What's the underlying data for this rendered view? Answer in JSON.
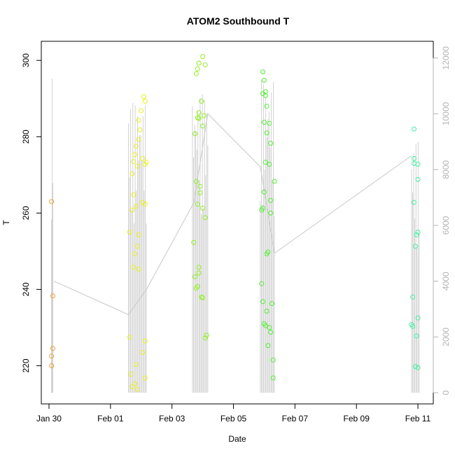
{
  "chart_data": {
    "type": "scatter",
    "title": "ATOM2 Southbound T",
    "xlabel": "Date",
    "ylabel": "T",
    "x_axis": {
      "type": "date",
      "range": [
        "2023-01-29T18:00",
        "2023-02-11T12:00"
      ],
      "ticks": [
        {
          "date": "2023-01-30",
          "label": "Jan 30"
        },
        {
          "date": "2023-02-01",
          "label": "Feb 01"
        },
        {
          "date": "2023-02-03",
          "label": "Feb 03"
        },
        {
          "date": "2023-02-05",
          "label": "Feb 05"
        },
        {
          "date": "2023-02-07",
          "label": "Feb 07"
        },
        {
          "date": "2023-02-09",
          "label": "Feb 09"
        },
        {
          "date": "2023-02-11",
          "label": "Feb 11"
        }
      ]
    },
    "y_left": {
      "range": [
        210,
        305
      ],
      "ticks": [
        220,
        240,
        260,
        280,
        300
      ]
    },
    "y_right": {
      "range": [
        -400,
        12600
      ],
      "ticks": [
        0,
        2000,
        4000,
        6000,
        8000,
        10000,
        12000
      ],
      "color": "#b3b3b3"
    },
    "grid": false,
    "point_style": "open circle",
    "line_color": "#c8c8c8",
    "series": [
      {
        "color": "#f0a030",
        "points": [
          {
            "x": "2023-01-30T02:00",
            "y": 263
          },
          {
            "x": "2023-01-30T03:00",
            "y": 238.3
          },
          {
            "x": "2023-01-30T03:00",
            "y": 224.5
          },
          {
            "x": "2023-01-30T02:00",
            "y": 222.5
          },
          {
            "x": "2023-01-30T02:00",
            "y": 220
          }
        ]
      },
      {
        "color": "#e8f020",
        "points": [
          {
            "x": "2023-02-02T02:00",
            "y": 290.5
          },
          {
            "x": "2023-02-02T03:00",
            "y": 289.3
          },
          {
            "x": "2023-02-02T00:00",
            "y": 286.8
          },
          {
            "x": "2023-02-01T22:00",
            "y": 284.3
          },
          {
            "x": "2023-02-01T23:00",
            "y": 281.8
          },
          {
            "x": "2023-02-01T20:00",
            "y": 277.5
          },
          {
            "x": "2023-02-01T22:00",
            "y": 279.3
          },
          {
            "x": "2023-02-01T19:00",
            "y": 275.3
          },
          {
            "x": "2023-02-01T18:00",
            "y": 273.5
          },
          {
            "x": "2023-02-02T01:00",
            "y": 274.3
          },
          {
            "x": "2023-02-02T03:00",
            "y": 272.8
          },
          {
            "x": "2023-02-02T04:00",
            "y": 273.3
          },
          {
            "x": "2023-02-01T21:00",
            "y": 272.3
          },
          {
            "x": "2023-02-01T17:00",
            "y": 270.3
          },
          {
            "x": "2023-02-01T18:00",
            "y": 264.8
          },
          {
            "x": "2023-02-02T01:00",
            "y": 262.8
          },
          {
            "x": "2023-02-02T03:00",
            "y": 262.3
          },
          {
            "x": "2023-02-01T20:00",
            "y": 261.8
          },
          {
            "x": "2023-02-01T17:00",
            "y": 260.8
          },
          {
            "x": "2023-02-01T15:00",
            "y": 255.0
          },
          {
            "x": "2023-02-01T22:00",
            "y": 254.3
          },
          {
            "x": "2023-02-01T21:00",
            "y": 251.3
          },
          {
            "x": "2023-02-01T19:00",
            "y": 249.3
          },
          {
            "x": "2023-02-01T18:00",
            "y": 245.8
          },
          {
            "x": "2023-02-01T22:00",
            "y": 245.3
          },
          {
            "x": "2023-02-01T15:00",
            "y": 227.5
          },
          {
            "x": "2023-02-02T03:00",
            "y": 226.5
          },
          {
            "x": "2023-02-02T01:00",
            "y": 223.5
          },
          {
            "x": "2023-02-01T20:00",
            "y": 220.3
          },
          {
            "x": "2023-02-01T16:00",
            "y": 217.8
          },
          {
            "x": "2023-02-02T03:00",
            "y": 216.8
          },
          {
            "x": "2023-02-01T19:00",
            "y": 215.3
          },
          {
            "x": "2023-02-01T17:00",
            "y": 214.5
          },
          {
            "x": "2023-02-01T21:00",
            "y": 213.8
          }
        ]
      },
      {
        "color": "#90f020",
        "points": [
          {
            "x": "2023-02-04T00:00",
            "y": 301
          },
          {
            "x": "2023-02-03T21:00",
            "y": 299.3
          },
          {
            "x": "2023-02-04T02:00",
            "y": 298.8
          },
          {
            "x": "2023-02-03T20:00",
            "y": 297.8
          },
          {
            "x": "2023-02-03T19:00",
            "y": 296.5
          },
          {
            "x": "2023-02-03T23:00",
            "y": 289.3
          },
          {
            "x": "2023-02-03T21:00",
            "y": 286.3
          },
          {
            "x": "2023-02-04T01:00",
            "y": 285.5
          },
          {
            "x": "2023-02-03T20:00",
            "y": 285.0
          },
          {
            "x": "2023-02-03T21:00",
            "y": 284.8
          },
          {
            "x": "2023-02-04T00:00",
            "y": 282.8
          },
          {
            "x": "2023-02-03T18:00",
            "y": 280.8
          },
          {
            "x": "2023-02-03T19:00",
            "y": 268.3
          },
          {
            "x": "2023-02-03T22:00",
            "y": 267.0
          },
          {
            "x": "2023-02-03T22:00",
            "y": 265.3
          },
          {
            "x": "2023-02-03T20:00",
            "y": 262.3
          },
          {
            "x": "2023-02-04T00:00",
            "y": 261.3
          },
          {
            "x": "2023-02-04T02:00",
            "y": 258.8
          },
          {
            "x": "2023-02-03T17:00",
            "y": 252.3
          },
          {
            "x": "2023-02-03T21:00",
            "y": 245.8
          },
          {
            "x": "2023-02-03T21:00",
            "y": 244.3
          },
          {
            "x": "2023-02-03T18:00",
            "y": 243.3
          },
          {
            "x": "2023-02-03T20:00",
            "y": 240.8
          },
          {
            "x": "2023-02-03T19:00",
            "y": 240.3
          },
          {
            "x": "2023-02-03T23:00",
            "y": 238.0
          },
          {
            "x": "2023-02-04T00:00",
            "y": 237.8
          },
          {
            "x": "2023-02-04T03:00",
            "y": 228.0
          },
          {
            "x": "2023-02-04T02:00",
            "y": 227.3
          }
        ]
      },
      {
        "color": "#50f030",
        "points": [
          {
            "x": "2023-02-05T23:00",
            "y": 297
          },
          {
            "x": "2023-02-06T00:00",
            "y": 294.8
          },
          {
            "x": "2023-02-06T01:00",
            "y": 291.8
          },
          {
            "x": "2023-02-05T23:00",
            "y": 291.3
          },
          {
            "x": "2023-02-06T01:00",
            "y": 290.8
          },
          {
            "x": "2023-02-06T02:00",
            "y": 288.0
          },
          {
            "x": "2023-02-06T00:00",
            "y": 283.8
          },
          {
            "x": "2023-02-06T04:00",
            "y": 283.5
          },
          {
            "x": "2023-02-06T02:00",
            "y": 281.0
          },
          {
            "x": "2023-02-06T05:00",
            "y": 278.3
          },
          {
            "x": "2023-02-06T01:00",
            "y": 273.3
          },
          {
            "x": "2023-02-06T04:00",
            "y": 272.8
          },
          {
            "x": "2023-02-06T08:00",
            "y": 268.3
          },
          {
            "x": "2023-02-06T00:00",
            "y": 265.5
          },
          {
            "x": "2023-02-06T05:00",
            "y": 263.3
          },
          {
            "x": "2023-02-05T23:00",
            "y": 261.3
          },
          {
            "x": "2023-02-05T22:00",
            "y": 260.8
          },
          {
            "x": "2023-02-06T05:00",
            "y": 260.0
          },
          {
            "x": "2023-02-06T03:00",
            "y": 249.8
          },
          {
            "x": "2023-02-06T02:00",
            "y": 249.3
          },
          {
            "x": "2023-02-05T22:00",
            "y": 241.5
          },
          {
            "x": "2023-02-05T23:00",
            "y": 236.8
          },
          {
            "x": "2023-02-06T06:00",
            "y": 236.3
          },
          {
            "x": "2023-02-06T02:00",
            "y": 234.3
          },
          {
            "x": "2023-02-06T00:00",
            "y": 231.0
          },
          {
            "x": "2023-02-06T01:00",
            "y": 230.5
          },
          {
            "x": "2023-02-06T04:00",
            "y": 230.0
          },
          {
            "x": "2023-02-06T05:00",
            "y": 228.8
          },
          {
            "x": "2023-02-06T03:00",
            "y": 225.3
          },
          {
            "x": "2023-02-06T07:00",
            "y": 221.5
          },
          {
            "x": "2023-02-06T07:00",
            "y": 216.8
          }
        ]
      },
      {
        "color": "#40f0a0",
        "points": [
          {
            "x": "2023-02-10T21:00",
            "y": 282.0
          },
          {
            "x": "2023-02-10T21:00",
            "y": 274.3
          },
          {
            "x": "2023-02-10T21:00",
            "y": 273.0
          },
          {
            "x": "2023-02-11T00:00",
            "y": 272.8
          },
          {
            "x": "2023-02-11T00:00",
            "y": 268.8
          },
          {
            "x": "2023-02-10T21:00",
            "y": 262.8
          },
          {
            "x": "2023-02-11T00:00",
            "y": 255.0
          },
          {
            "x": "2023-02-10T23:00",
            "y": 254.3
          },
          {
            "x": "2023-02-10T22:00",
            "y": 251.3
          },
          {
            "x": "2023-02-10T20:00",
            "y": 238.0
          },
          {
            "x": "2023-02-11T00:00",
            "y": 232.5
          },
          {
            "x": "2023-02-10T19:00",
            "y": 230.8
          },
          {
            "x": "2023-02-10T20:00",
            "y": 230.3
          },
          {
            "x": "2023-02-10T23:00",
            "y": 227.8
          },
          {
            "x": "2023-02-10T22:00",
            "y": 219.8
          },
          {
            "x": "2023-02-11T00:00",
            "y": 219.5
          }
        ]
      }
    ],
    "trace_right_axis": {
      "color": "#c8c8c8",
      "spike_min": 0,
      "clusters": [
        {
          "x": [
            "2023-01-30T02:00",
            "2023-01-30T03:00"
          ],
          "top": 11300
        },
        {
          "x": [
            "2023-02-01T14:00",
            "2023-02-02T04:00"
          ],
          "top": 10400
        },
        {
          "x": [
            "2023-02-03T16:00",
            "2023-02-04T04:00"
          ],
          "top": 10700
        },
        {
          "x": [
            "2023-02-05T21:00",
            "2023-02-06T08:00"
          ],
          "top": 11200
        },
        {
          "x": [
            "2023-02-10T19:00",
            "2023-02-11T01:00"
          ],
          "top": 9000
        }
      ],
      "connectors": [
        {
          "x": "2023-01-30T04:00",
          "y": 4000
        },
        {
          "x": "2023-02-01T14:00",
          "y": 2800
        },
        {
          "x": "2023-02-02T04:00",
          "y": 3700
        },
        {
          "x": "2023-02-03T17:00",
          "y": 6800
        },
        {
          "x": "2023-02-04T04:00",
          "y": 10000
        },
        {
          "x": "2023-02-05T21:00",
          "y": 8100
        },
        {
          "x": "2023-02-06T08:00",
          "y": 5000
        },
        {
          "x": "2023-02-10T19:00",
          "y": 8500
        }
      ]
    }
  }
}
